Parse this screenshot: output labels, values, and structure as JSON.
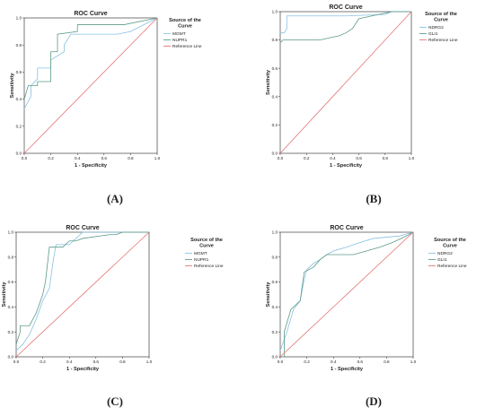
{
  "colors": {
    "series1": "#87c1e3",
    "series2": "#5c9a86",
    "reference": "#e57373",
    "axis": "#222222"
  },
  "chart_data": [
    {
      "type": "line",
      "panel": "A",
      "caption": "(A)",
      "title": "ROC Curve",
      "xlabel": "1 - Specificity",
      "ylabel": "Sensitivity",
      "xlim": [
        0,
        1
      ],
      "ylim": [
        0,
        1
      ],
      "xticks": [
        "0.0",
        "0.2",
        "0.4",
        "0.6",
        "0.8",
        "1.0"
      ],
      "yticks": [
        "0.0",
        "0.2",
        "0.4",
        "0.6",
        "0.8",
        "1.0"
      ],
      "legend_title": "Source of the Curve",
      "legend_position": "right",
      "series": [
        {
          "name": "MGMT",
          "color_key": "series1",
          "x": [
            0,
            0.05,
            0.05,
            0.1,
            0.1,
            0.2,
            0.2,
            0.3,
            0.3,
            0.35,
            0.55,
            0.7,
            0.8,
            1.0
          ],
          "y": [
            0.33,
            0.42,
            0.5,
            0.55,
            0.63,
            0.63,
            0.69,
            0.75,
            0.8,
            0.88,
            0.88,
            0.88,
            0.9,
            1.0
          ]
        },
        {
          "name": "NUPR1",
          "color_key": "series2",
          "x": [
            0,
            0.03,
            0.03,
            0.1,
            0.1,
            0.2,
            0.2,
            0.25,
            0.25,
            0.4,
            0.4,
            0.6,
            0.75,
            1.0
          ],
          "y": [
            0.4,
            0.5,
            0.5,
            0.5,
            0.53,
            0.53,
            0.75,
            0.75,
            0.88,
            0.9,
            0.95,
            0.95,
            0.95,
            1.0
          ]
        },
        {
          "name": "Reference Line",
          "color_key": "reference",
          "x": [
            0,
            1
          ],
          "y": [
            0,
            1
          ]
        }
      ]
    },
    {
      "type": "line",
      "panel": "B",
      "caption": "(B)",
      "title": "ROC Curve",
      "xlabel": "1 - Specificity",
      "ylabel": "Sensitivity",
      "xlim": [
        0,
        1
      ],
      "ylim": [
        0,
        1
      ],
      "xticks": [
        "0.0",
        "0.2",
        "0.4",
        "0.6",
        "0.8",
        "1.0"
      ],
      "yticks": [
        "0.0",
        "0.2",
        "0.4",
        "0.6",
        "0.8",
        "1.0"
      ],
      "legend_title": "Source of the Curve",
      "legend_position": "right",
      "series": [
        {
          "name": "NDRG2",
          "color_key": "series1",
          "x": [
            0,
            0.03,
            0.05,
            0.05,
            0.3,
            0.45,
            0.5,
            0.8,
            0.85,
            1.0
          ],
          "y": [
            0.85,
            0.85,
            0.88,
            0.97,
            0.97,
            0.97,
            0.97,
            0.98,
            1.0,
            1.0
          ]
        },
        {
          "name": "GLI1",
          "color_key": "series2",
          "x": [
            0,
            0.02,
            0.05,
            0.3,
            0.45,
            0.5,
            0.55,
            0.6,
            0.75,
            0.85,
            1.0
          ],
          "y": [
            0.78,
            0.8,
            0.8,
            0.8,
            0.83,
            0.85,
            0.88,
            0.95,
            0.98,
            1.0,
            1.0
          ]
        },
        {
          "name": "Reference Line",
          "color_key": "reference",
          "x": [
            0,
            1
          ],
          "y": [
            0,
            1
          ]
        }
      ]
    },
    {
      "type": "line",
      "panel": "C",
      "caption": "(C)",
      "title": "ROC Curve",
      "xlabel": "1 - Specificity",
      "ylabel": "Sensitivity",
      "xlim": [
        0,
        1
      ],
      "ylim": [
        0,
        1
      ],
      "xticks": [
        "0.0",
        "0.2",
        "0.4",
        "0.6",
        "0.8",
        "1.0"
      ],
      "yticks": [
        "0.0",
        "0.2",
        "0.4",
        "0.6",
        "0.8",
        "1.0"
      ],
      "legend_title": "Source of the Curve",
      "legend_position": "right",
      "series": [
        {
          "name": "MGMT",
          "color_key": "series1",
          "x": [
            0,
            0.05,
            0.1,
            0.15,
            0.2,
            0.25,
            0.28,
            0.3,
            0.4,
            0.45,
            0.5,
            0.6,
            0.7,
            0.8,
            1.0
          ],
          "y": [
            0.05,
            0.1,
            0.18,
            0.3,
            0.45,
            0.55,
            0.78,
            0.9,
            0.9,
            0.95,
            1.0,
            1.0,
            1.0,
            1.0,
            1.0
          ]
        },
        {
          "name": "NUPR1",
          "color_key": "series2",
          "x": [
            0,
            0.03,
            0.03,
            0.1,
            0.15,
            0.2,
            0.22,
            0.25,
            0.3,
            0.35,
            0.4,
            0.45,
            0.5,
            0.7,
            0.75,
            0.8,
            1.0
          ],
          "y": [
            0.1,
            0.2,
            0.25,
            0.25,
            0.35,
            0.5,
            0.6,
            0.88,
            0.88,
            0.88,
            0.93,
            0.93,
            0.95,
            0.98,
            0.98,
            1.0,
            1.0
          ]
        },
        {
          "name": "Reference Line",
          "color_key": "reference",
          "x": [
            0,
            1
          ],
          "y": [
            0,
            1
          ]
        }
      ]
    },
    {
      "type": "line",
      "panel": "D",
      "caption": "(D)",
      "title": "ROC Curve",
      "xlabel": "1 - Specificity",
      "ylabel": "Sensitivity",
      "xlim": [
        0,
        1
      ],
      "ylim": [
        0,
        1
      ],
      "xticks": [
        "0.0",
        "0.2",
        "0.4",
        "0.6",
        "0.8",
        "1.0"
      ],
      "yticks": [
        "0.0",
        "0.2",
        "0.4",
        "0.6",
        "0.8",
        "1.0"
      ],
      "legend_title": "Source of the Curve",
      "legend_position": "right",
      "series": [
        {
          "name": "NDRG2",
          "color_key": "series1",
          "x": [
            0,
            0.05,
            0.1,
            0.15,
            0.18,
            0.2,
            0.25,
            0.3,
            0.35,
            0.4,
            0.5,
            0.55,
            0.7,
            0.9,
            1.0
          ],
          "y": [
            0.05,
            0.2,
            0.38,
            0.45,
            0.62,
            0.7,
            0.75,
            0.78,
            0.82,
            0.85,
            0.88,
            0.9,
            0.95,
            0.97,
            1.0
          ]
        },
        {
          "name": "GLI1",
          "color_key": "series2",
          "x": [
            0,
            0.03,
            0.03,
            0.08,
            0.1,
            0.15,
            0.18,
            0.25,
            0.3,
            0.35,
            0.4,
            0.55,
            0.65,
            0.75,
            0.85,
            0.95,
            1.0
          ],
          "y": [
            0.0,
            0.0,
            0.2,
            0.38,
            0.4,
            0.45,
            0.68,
            0.72,
            0.78,
            0.82,
            0.82,
            0.82,
            0.85,
            0.88,
            0.92,
            0.97,
            1.0
          ]
        },
        {
          "name": "Reference Line",
          "color_key": "reference",
          "x": [
            0,
            1
          ],
          "y": [
            0,
            1
          ]
        }
      ]
    }
  ]
}
